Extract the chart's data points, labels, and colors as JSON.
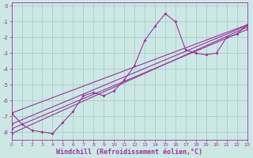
{
  "background_color": "#cce8e4",
  "grid_color": "#aacccc",
  "line_color": "#993399",
  "marker_color": "#993399",
  "xlabel": "Windchill (Refroidissement éolien,°C)",
  "xlabel_fontsize": 6,
  "xlim": [
    0,
    23
  ],
  "ylim": [
    -8.5,
    0.2
  ],
  "yticks": [
    0,
    -1,
    -2,
    -3,
    -4,
    -5,
    -6,
    -7,
    -8
  ],
  "xticks": [
    0,
    1,
    2,
    3,
    4,
    5,
    6,
    7,
    8,
    9,
    10,
    11,
    12,
    13,
    14,
    15,
    16,
    17,
    18,
    19,
    20,
    21,
    22,
    23
  ],
  "series_main": [
    [
      0,
      -6.8
    ],
    [
      1,
      -7.5
    ],
    [
      2,
      -7.9
    ],
    [
      3,
      -8.0
    ],
    [
      4,
      -8.1
    ],
    [
      5,
      -7.4
    ],
    [
      6,
      -6.7
    ],
    [
      7,
      -5.7
    ],
    [
      8,
      -5.5
    ],
    [
      9,
      -5.7
    ],
    [
      10,
      -5.4
    ],
    [
      11,
      -4.7
    ],
    [
      12,
      -3.8
    ],
    [
      13,
      -2.2
    ],
    [
      14,
      -1.3
    ],
    [
      15,
      -0.5
    ],
    [
      16,
      -1.0
    ],
    [
      17,
      -2.8
    ],
    [
      18,
      -3.0
    ],
    [
      19,
      -3.1
    ],
    [
      20,
      -3.0
    ],
    [
      21,
      -2.0
    ],
    [
      22,
      -1.8
    ],
    [
      23,
      -1.2
    ]
  ],
  "series_lin1": [
    [
      0,
      -6.8
    ],
    [
      23,
      -1.2
    ]
  ],
  "series_lin2": [
    [
      0,
      -7.8
    ],
    [
      23,
      -1.5
    ]
  ],
  "series_lin3": [
    [
      0,
      -8.1
    ],
    [
      23,
      -1.35
    ]
  ],
  "series_lin4": [
    [
      0,
      -7.5
    ],
    [
      23,
      -1.25
    ]
  ]
}
